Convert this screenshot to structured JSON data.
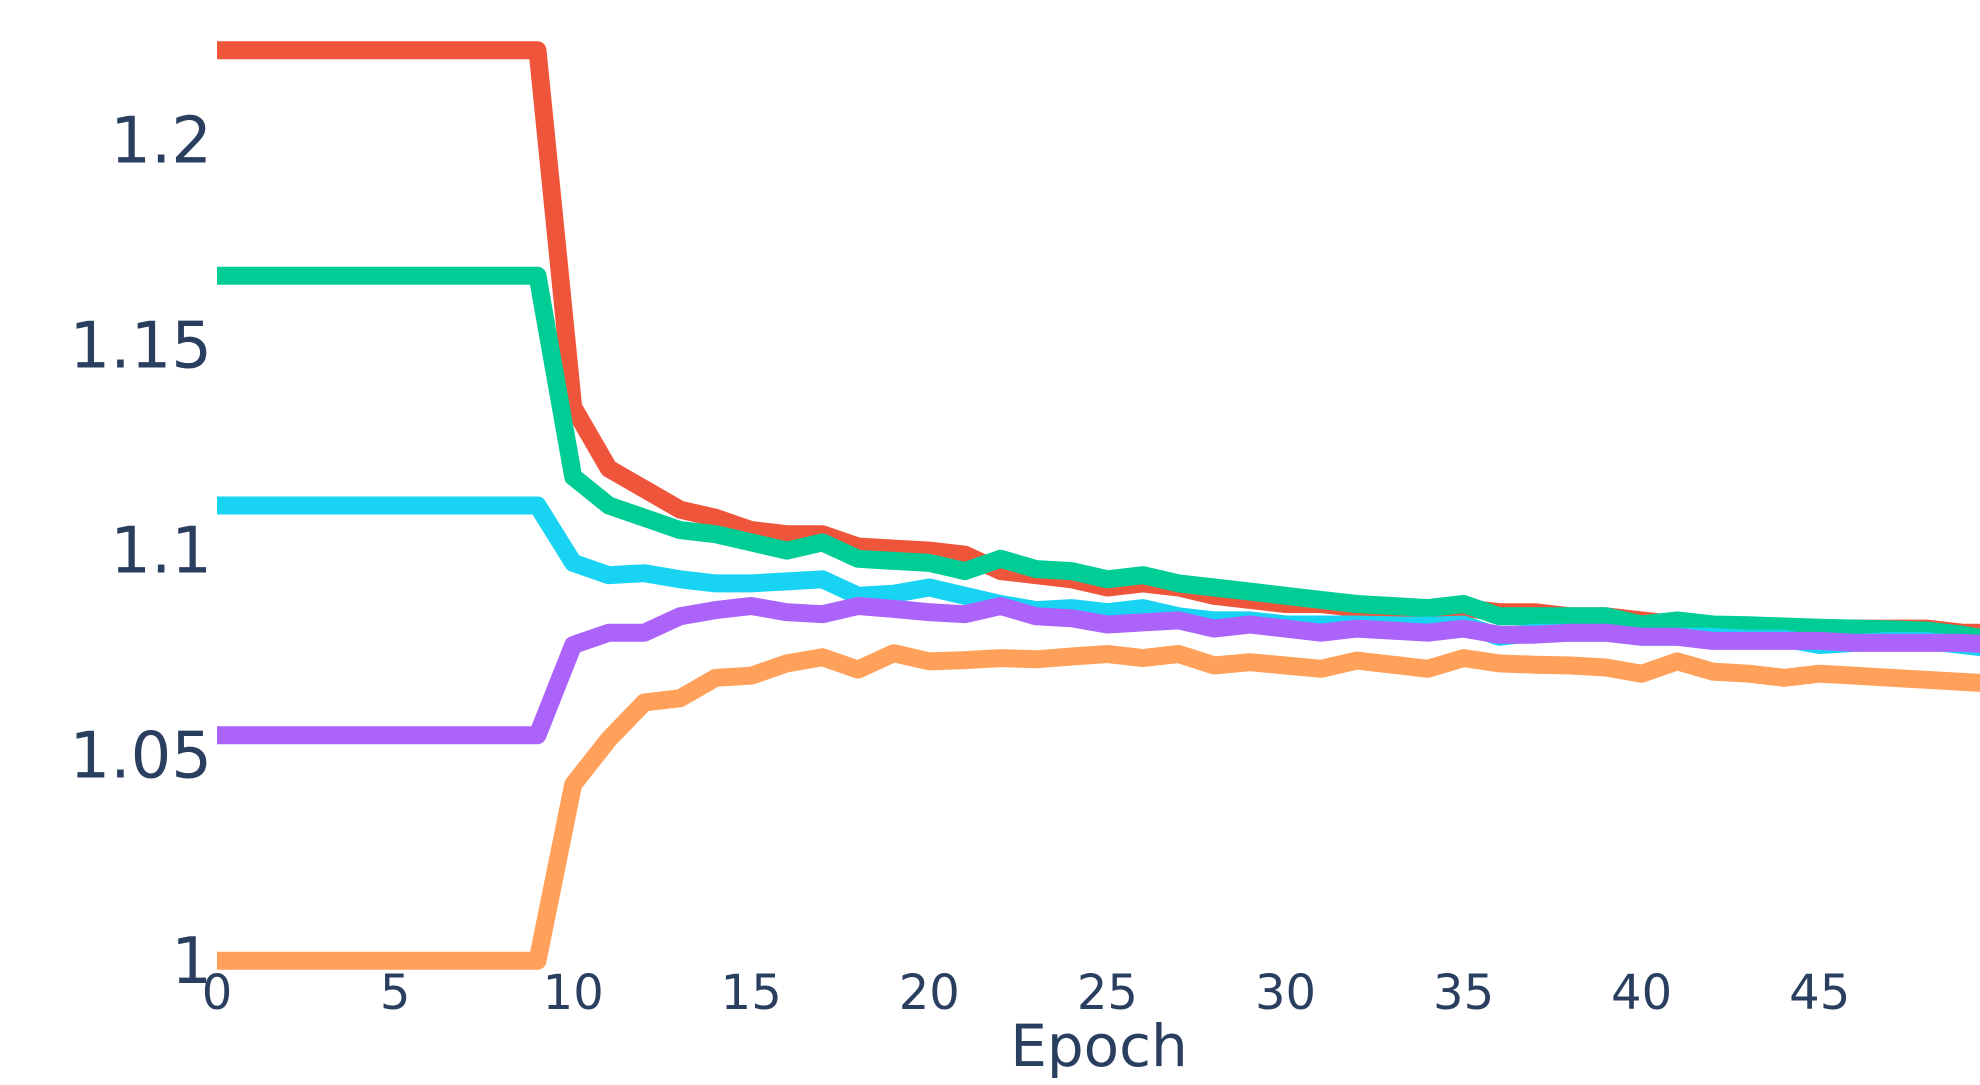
{
  "chart_data": {
    "type": "line",
    "title": "",
    "xlabel": "Epoch",
    "ylabel": "",
    "xlim": [
      0,
      49.5
    ],
    "ylim": [
      0.988,
      1.2245
    ],
    "x_ticks": [
      0,
      5,
      10,
      15,
      20,
      25,
      30,
      35,
      40,
      45
    ],
    "x_tick_labels": [
      "0",
      "5",
      "10",
      "15",
      "20",
      "25",
      "30",
      "35",
      "40",
      "45"
    ],
    "y_ticks": [
      1,
      1.05,
      1.1,
      1.15,
      1.2
    ],
    "y_tick_labels": [
      "1",
      "1.05",
      "1.1",
      "1.15",
      "1.2"
    ],
    "grid": false,
    "legend": "none",
    "x": [
      0,
      1,
      2,
      3,
      4,
      5,
      6,
      7,
      8,
      9,
      10,
      11,
      12,
      13,
      14,
      15,
      16,
      17,
      18,
      19,
      20,
      21,
      22,
      23,
      24,
      25,
      26,
      27,
      28,
      29,
      30,
      31,
      32,
      33,
      34,
      35,
      36,
      37,
      38,
      39,
      40,
      41,
      42,
      43,
      44,
      45,
      46,
      47,
      48,
      49,
      50
    ],
    "series": [
      {
        "color": "#ef553b",
        "values": [
          1.222,
          1.222,
          1.222,
          1.222,
          1.222,
          1.222,
          1.222,
          1.222,
          1.222,
          1.222,
          1.135,
          1.12,
          1.115,
          1.11,
          1.108,
          1.105,
          1.104,
          1.104,
          1.101,
          1.1005,
          1.1,
          1.099,
          1.095,
          1.094,
          1.093,
          1.091,
          1.092,
          1.091,
          1.089,
          1.088,
          1.087,
          1.087,
          1.086,
          1.086,
          1.086,
          1.086,
          1.085,
          1.085,
          1.084,
          1.084,
          1.083,
          1.082,
          1.081,
          1.081,
          1.081,
          1.081,
          1.081,
          1.081,
          1.081,
          1.08,
          1.08
        ]
      },
      {
        "color": "#00cc96",
        "values": [
          1.167,
          1.167,
          1.167,
          1.167,
          1.167,
          1.167,
          1.167,
          1.167,
          1.167,
          1.167,
          1.118,
          1.111,
          1.108,
          1.105,
          1.104,
          1.102,
          1.1,
          1.102,
          1.098,
          1.0975,
          1.097,
          1.095,
          1.098,
          1.0955,
          1.095,
          1.093,
          1.094,
          1.092,
          1.091,
          1.09,
          1.089,
          1.088,
          1.087,
          1.0865,
          1.086,
          1.087,
          1.084,
          1.084,
          1.084,
          1.084,
          1.082,
          1.083,
          1.082,
          1.0818,
          1.0815,
          1.0812,
          1.081,
          1.0808,
          1.0805,
          1.0795,
          1.078
        ]
      },
      {
        "color": "#19d3f3",
        "values": [
          1.111,
          1.111,
          1.111,
          1.111,
          1.111,
          1.111,
          1.111,
          1.111,
          1.111,
          1.111,
          1.097,
          1.094,
          1.0945,
          1.093,
          1.092,
          1.092,
          1.0925,
          1.093,
          1.089,
          1.0895,
          1.091,
          1.089,
          1.087,
          1.0855,
          1.086,
          1.085,
          1.086,
          1.084,
          1.083,
          1.083,
          1.082,
          1.082,
          1.082,
          1.0818,
          1.0817,
          1.082,
          1.079,
          1.08,
          1.08,
          1.08,
          1.079,
          1.079,
          1.079,
          1.0785,
          1.0785,
          1.077,
          1.0775,
          1.078,
          1.078,
          1.077,
          1.076
        ]
      },
      {
        "color": "#ab63fa",
        "values": [
          1.055,
          1.055,
          1.055,
          1.055,
          1.055,
          1.055,
          1.055,
          1.055,
          1.055,
          1.055,
          1.077,
          1.08,
          1.08,
          1.084,
          1.0855,
          1.0865,
          1.085,
          1.0845,
          1.0865,
          1.0858,
          1.085,
          1.0845,
          1.0865,
          1.084,
          1.0835,
          1.082,
          1.0825,
          1.083,
          1.081,
          1.082,
          1.081,
          1.08,
          1.081,
          1.0805,
          1.08,
          1.081,
          1.0795,
          1.0795,
          1.08,
          1.08,
          1.079,
          1.079,
          1.078,
          1.078,
          1.078,
          1.078,
          1.0775,
          1.0775,
          1.0775,
          1.0775,
          1.077
        ]
      },
      {
        "color": "#ffa15a",
        "values": [
          1.0,
          1.0,
          1.0,
          1.0,
          1.0,
          1.0,
          1.0,
          1.0,
          1.0,
          1.0,
          1.043,
          1.054,
          1.063,
          1.064,
          1.069,
          1.0695,
          1.0725,
          1.074,
          1.071,
          1.075,
          1.073,
          1.0733,
          1.0738,
          1.0735,
          1.0742,
          1.0748,
          1.0738,
          1.0748,
          1.072,
          1.0728,
          1.072,
          1.0712,
          1.0732,
          1.0722,
          1.0712,
          1.0738,
          1.0725,
          1.0722,
          1.072,
          1.0715,
          1.07,
          1.073,
          1.0705,
          1.07,
          1.069,
          1.07,
          1.0695,
          1.069,
          1.0685,
          1.068,
          1.0675
        ]
      }
    ]
  }
}
